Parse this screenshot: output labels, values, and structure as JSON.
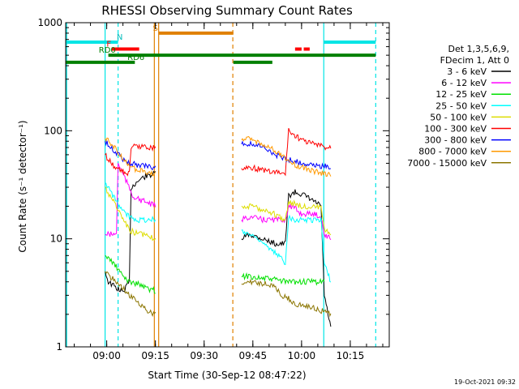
{
  "chart_data": {
    "type": "line",
    "title": "RHESSI Observing Summary Count Rates",
    "xlabel": "Start Time (30-Sep-12 08:47:22)",
    "ylabel": "Count Rate (s⁻¹ detector⁻¹)",
    "y_scale": "log",
    "ylim": [
      1,
      1000
    ],
    "xlim": [
      "08:47:22",
      "10:27:00"
    ],
    "x_tick_labels": [
      "09:00",
      "09:15",
      "09:30",
      "09:45",
      "10:00",
      "10:15"
    ],
    "y_tick_labels": [
      "1",
      "10",
      "100",
      "1000"
    ],
    "legend_header": [
      "Det 1,3,5,6,9,",
      "FDecim 1, Att 0"
    ],
    "legend_position": "right",
    "footer": "19-Oct-2021 09:32",
    "series": [
      {
        "name": "3 - 6 keV",
        "color": "#000000",
        "points": [
          [
            "08:59:30",
            5
          ],
          [
            "09:00:30",
            4
          ],
          [
            "09:03",
            3.5
          ],
          [
            "09:05",
            3.2
          ],
          [
            "09:07",
            4
          ],
          [
            "09:07:30",
            30
          ],
          [
            "09:10",
            35
          ],
          [
            "09:12",
            38
          ],
          [
            "09:15",
            40
          ],
          [
            "09:41:30",
            10
          ],
          [
            "09:44",
            11
          ],
          [
            "09:48",
            10
          ],
          [
            "09:52",
            9
          ],
          [
            "09:55",
            9
          ],
          [
            "09:56",
            25
          ],
          [
            "09:58",
            27
          ],
          [
            "10:00",
            26
          ],
          [
            "10:04",
            22
          ],
          [
            "10:06",
            20
          ],
          [
            "10:07",
            3
          ],
          [
            "10:09",
            1.5
          ]
        ]
      },
      {
        "name": "6 - 12 keV",
        "color": "#ff00ff",
        "points": [
          [
            "08:59:30",
            11
          ],
          [
            "09:01",
            11
          ],
          [
            "09:03",
            11
          ],
          [
            "09:03:30",
            50
          ],
          [
            "09:05",
            40
          ],
          [
            "09:08",
            25
          ],
          [
            "09:10",
            23
          ],
          [
            "09:12",
            22
          ],
          [
            "09:15",
            20
          ],
          [
            "09:41:30",
            15
          ],
          [
            "09:44",
            16
          ],
          [
            "09:48",
            15
          ],
          [
            "09:52",
            15
          ],
          [
            "09:55",
            15
          ],
          [
            "09:56",
            20
          ],
          [
            "09:58",
            19
          ],
          [
            "10:00",
            17
          ],
          [
            "10:04",
            17
          ],
          [
            "10:06",
            16
          ],
          [
            "10:07",
            11
          ],
          [
            "10:09",
            10
          ]
        ]
      },
      {
        "name": "12 - 25 keV",
        "color": "#00e000",
        "points": [
          [
            "08:59:30",
            7
          ],
          [
            "09:02",
            6
          ],
          [
            "09:05",
            4.5
          ],
          [
            "09:07",
            4
          ],
          [
            "09:10",
            3.8
          ],
          [
            "09:12",
            3.5
          ],
          [
            "09:15",
            3.3
          ],
          [
            "09:41:30",
            4.5
          ],
          [
            "09:44",
            4.5
          ],
          [
            "09:48",
            4.3
          ],
          [
            "09:52",
            4.2
          ],
          [
            "09:55",
            4
          ],
          [
            "09:58",
            4
          ],
          [
            "10:01",
            4
          ],
          [
            "10:04",
            4
          ],
          [
            "10:07",
            4
          ]
        ]
      },
      {
        "name": "25 - 50 keV",
        "color": "#00ffff",
        "points": [
          [
            "08:59:30",
            33
          ],
          [
            "09:01",
            28
          ],
          [
            "09:03",
            22
          ],
          [
            "09:05",
            18
          ],
          [
            "09:07",
            16
          ],
          [
            "09:10",
            15
          ],
          [
            "09:12",
            15
          ],
          [
            "09:15",
            15
          ],
          [
            "09:41:30",
            12
          ],
          [
            "09:44",
            11
          ],
          [
            "09:47",
            10
          ],
          [
            "09:50",
            8
          ],
          [
            "09:53",
            7
          ],
          [
            "09:55",
            6
          ],
          [
            "09:56",
            16
          ],
          [
            "09:58",
            15
          ],
          [
            "10:00",
            15
          ],
          [
            "10:04",
            15
          ],
          [
            "10:06",
            15
          ],
          [
            "10:07",
            6
          ],
          [
            "10:09",
            4
          ]
        ]
      },
      {
        "name": "50 - 100 keV",
        "color": "#dddd00",
        "points": [
          [
            "08:59:30",
            30
          ],
          [
            "09:01",
            25
          ],
          [
            "09:03",
            20
          ],
          [
            "09:05",
            15
          ],
          [
            "09:07",
            12
          ],
          [
            "09:10",
            11
          ],
          [
            "09:12",
            11
          ],
          [
            "09:15",
            10
          ],
          [
            "09:41:30",
            20
          ],
          [
            "09:44",
            20
          ],
          [
            "09:47",
            19
          ],
          [
            "09:50",
            18
          ],
          [
            "09:53",
            16
          ],
          [
            "09:55",
            15
          ],
          [
            "09:56",
            22
          ],
          [
            "09:58",
            21
          ],
          [
            "10:00",
            20
          ],
          [
            "10:04",
            20
          ],
          [
            "10:06",
            19
          ],
          [
            "10:07",
            12
          ],
          [
            "10:09",
            11
          ]
        ]
      },
      {
        "name": "100 - 300 keV",
        "color": "#ff0000",
        "points": [
          [
            "08:59:30",
            60
          ],
          [
            "09:01",
            52
          ],
          [
            "09:03",
            45
          ],
          [
            "09:05",
            42
          ],
          [
            "09:07",
            40
          ],
          [
            "09:07:30",
            70
          ],
          [
            "09:10",
            72
          ],
          [
            "09:12",
            71
          ],
          [
            "09:15",
            70
          ],
          [
            "09:41:30",
            45
          ],
          [
            "09:44",
            46
          ],
          [
            "09:47",
            44
          ],
          [
            "09:50",
            42
          ],
          [
            "09:53",
            41
          ],
          [
            "09:55",
            40
          ],
          [
            "09:56",
            100
          ],
          [
            "09:58",
            90
          ],
          [
            "10:00",
            82
          ],
          [
            "10:04",
            75
          ],
          [
            "10:06",
            72
          ],
          [
            "10:07",
            70
          ],
          [
            "10:09",
            70
          ]
        ]
      },
      {
        "name": "300 - 800 keV",
        "color": "#0000ff",
        "points": [
          [
            "08:59:30",
            80
          ],
          [
            "09:01",
            72
          ],
          [
            "09:03",
            62
          ],
          [
            "09:05",
            55
          ],
          [
            "09:07",
            50
          ],
          [
            "09:10",
            48
          ],
          [
            "09:12",
            47
          ],
          [
            "09:15",
            46
          ],
          [
            "09:41:30",
            75
          ],
          [
            "09:44",
            76
          ],
          [
            "09:47",
            72
          ],
          [
            "09:50",
            65
          ],
          [
            "09:53",
            58
          ],
          [
            "09:55",
            55
          ],
          [
            "09:58",
            52
          ],
          [
            "10:01",
            50
          ],
          [
            "10:04",
            48
          ],
          [
            "10:07",
            47
          ],
          [
            "10:09",
            46
          ]
        ]
      },
      {
        "name": "800 - 7000 keV",
        "color": "#ff9900",
        "points": [
          [
            "08:59:30",
            85
          ],
          [
            "09:01",
            78
          ],
          [
            "09:03",
            66
          ],
          [
            "09:05",
            56
          ],
          [
            "09:07",
            46
          ],
          [
            "09:10",
            43
          ],
          [
            "09:12",
            42
          ],
          [
            "09:15",
            40
          ],
          [
            "09:41:30",
            82
          ],
          [
            "09:44",
            84
          ],
          [
            "09:47",
            78
          ],
          [
            "09:50",
            70
          ],
          [
            "09:53",
            62
          ],
          [
            "09:55",
            55
          ],
          [
            "09:58",
            48
          ],
          [
            "10:01",
            45
          ],
          [
            "10:04",
            42
          ],
          [
            "10:07",
            40
          ],
          [
            "10:09",
            39
          ]
        ]
      },
      {
        "name": "7000 - 15000 keV",
        "color": "#8b7500",
        "points": [
          [
            "08:59:30",
            5
          ],
          [
            "09:01",
            4.5
          ],
          [
            "09:03",
            4
          ],
          [
            "09:05",
            3.5
          ],
          [
            "09:07",
            3
          ],
          [
            "09:10",
            2.5
          ],
          [
            "09:12",
            2.2
          ],
          [
            "09:15",
            2
          ],
          [
            "09:41:30",
            3.8
          ],
          [
            "09:44",
            4
          ],
          [
            "09:47",
            3.9
          ],
          [
            "09:50",
            3.8
          ],
          [
            "09:52",
            3.5
          ],
          [
            "09:54",
            3
          ],
          [
            "09:56",
            2.8
          ],
          [
            "09:58",
            2.5
          ],
          [
            "10:01",
            2.4
          ],
          [
            "10:04",
            2.3
          ],
          [
            "10:07",
            2.1
          ],
          [
            "10:09",
            2
          ]
        ]
      }
    ],
    "vertical_markers": [
      {
        "time": "08:47:40",
        "color": "#00e5e5",
        "style": "solid"
      },
      {
        "time": "08:59:30",
        "color": "#00e5e5",
        "style": "solid"
      },
      {
        "time": "09:03:30",
        "color": "#00e5e5",
        "style": "dashed"
      },
      {
        "time": "09:14:40",
        "color": "#e08000",
        "style": "solid"
      },
      {
        "time": "09:16",
        "color": "#e08000",
        "style": "solid"
      },
      {
        "time": "09:38:50",
        "color": "#e08000",
        "style": "dashed"
      },
      {
        "time": "10:06:50",
        "color": "#00e5e5",
        "style": "solid"
      },
      {
        "time": "10:22:50",
        "color": "#00e5e5",
        "style": "dashed"
      }
    ],
    "flag_bars": [
      {
        "label": "N",
        "label_color": "#00bbbb",
        "color": "#00e5e5",
        "level": 660,
        "label_at": "09:04",
        "segments": [
          [
            "08:47:22",
            "09:03:30"
          ],
          [
            "10:06:50",
            "10:22:50"
          ]
        ]
      },
      {
        "label": "S",
        "label_color": "#e08000",
        "color": "#e08000",
        "level": 800,
        "label_at": "09:15",
        "segments": [
          [
            "09:16",
            "09:39"
          ]
        ]
      },
      {
        "label": "F",
        "label_color": "#ff0000",
        "color": "#ff0000",
        "level": 570,
        "label_at": "09:00:40",
        "segments": [
          [
            "09:01:30",
            "09:10"
          ],
          [
            "09:58",
            "10:00"
          ],
          [
            "10:00:40",
            "10:02:30"
          ]
        ]
      },
      {
        "label": "RD0",
        "label_color": "#008000",
        "color": "#008000",
        "level": 500,
        "label_at": "09:00:10",
        "segments": [
          [
            "09:00:30",
            "10:22:50"
          ]
        ]
      },
      {
        "label": "RD6",
        "label_color": "#008000",
        "color": "#008000",
        "level": 430,
        "label_at": "09:09",
        "segments": [
          [
            "08:47:22",
            "09:08:40"
          ],
          [
            "09:39",
            "09:51"
          ]
        ]
      }
    ]
  }
}
